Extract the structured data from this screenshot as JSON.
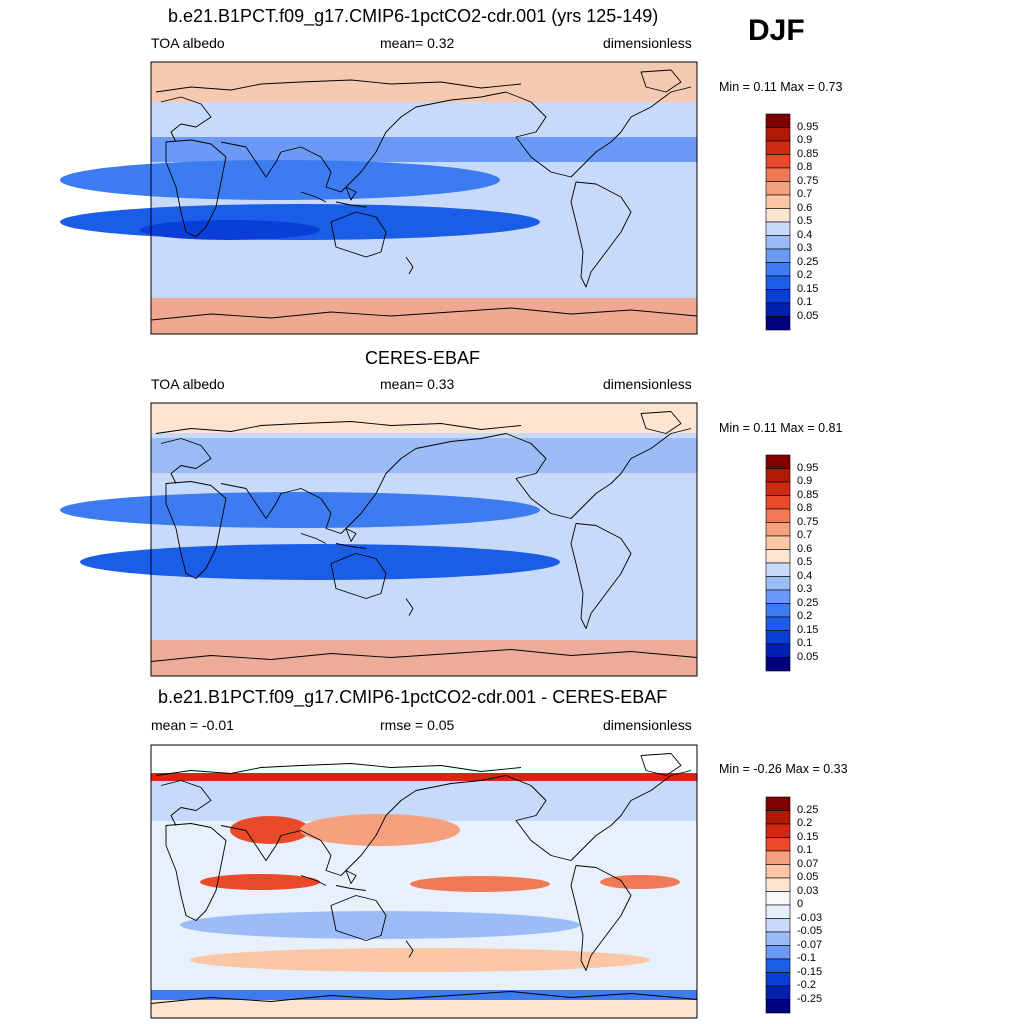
{
  "season": "DJF",
  "colors": {
    "seq": [
      "#000080",
      "#0020b0",
      "#0a3ed8",
      "#1a5ee8",
      "#3d7cf0",
      "#6a9af5",
      "#9cbcf8",
      "#c8daf9",
      "#e7f0fb",
      "#fde5d2",
      "#fbc7a6",
      "#f6a07e",
      "#f07a55",
      "#e84a2a",
      "#d02812",
      "#b01808",
      "#800000"
    ],
    "diff": [
      "#000080",
      "#0020b0",
      "#0a3ed8",
      "#1a5ee8",
      "#3d7cf0",
      "#6a9af5",
      "#9cbcf8",
      "#c8daf9",
      "#e7f0fb",
      "#f8f8f8",
      "#fde5d2",
      "#fbc7a6",
      "#f6a07e",
      "#f07a55",
      "#e84a2a",
      "#d02812",
      "#b01808",
      "#800000"
    ]
  },
  "panels": [
    {
      "title": "b.e21.B1PCT.f09_g17.CMIP6-1pctCO2-cdr.001 (yrs 125-149)",
      "left_label": "TOA albedo",
      "center_label": "mean=   0.32",
      "right_label": "dimensionless",
      "minmax": "Min =   0.11 Max =   0.73",
      "colorbar": [
        "0.95",
        "0.9",
        "0.85",
        "0.8",
        "0.75",
        "0.7",
        "0.6",
        "0.5",
        "0.4",
        "0.3",
        "0.25",
        "0.2",
        "0.15",
        "0.1",
        "0.05"
      ]
    },
    {
      "title": "CERES-EBAF",
      "left_label": "TOA albedo",
      "center_label": "mean=   0.33",
      "right_label": "dimensionless",
      "minmax": "Min =   0.11 Max =   0.81",
      "colorbar": [
        "0.95",
        "0.9",
        "0.85",
        "0.8",
        "0.75",
        "0.7",
        "0.6",
        "0.5",
        "0.4",
        "0.3",
        "0.25",
        "0.2",
        "0.15",
        "0.1",
        "0.05"
      ]
    },
    {
      "title": "b.e21.B1PCT.f09_g17.CMIP6-1pctCO2-cdr.001 - CERES-EBAF",
      "left_label": "mean =  -0.01",
      "center_label": "rmse =    0.05",
      "right_label": "dimensionless",
      "minmax": "Min =  -0.26 Max =   0.33",
      "colorbar": [
        "0.25",
        "0.2",
        "0.15",
        "0.1",
        "0.07",
        "0.05",
        "0.03",
        "0",
        "-0.03",
        "-0.05",
        "-0.07",
        "-0.1",
        "-0.15",
        "-0.2",
        "-0.25"
      ]
    }
  ]
}
